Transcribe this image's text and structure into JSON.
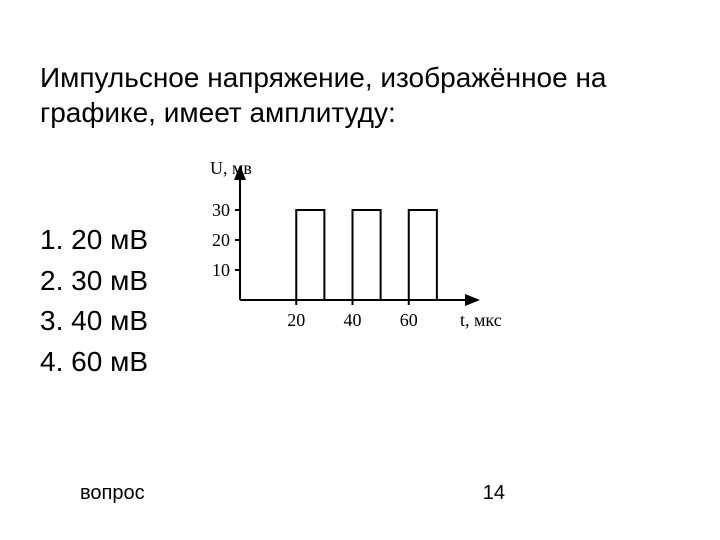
{
  "question": "Импульсное напряжение, изображённое на графике, имеет амплитуду:",
  "options": [
    {
      "n": "1.",
      "text": "20 мВ"
    },
    {
      "n": "2.",
      "text": "30 мВ"
    },
    {
      "n": "3.",
      "text": "40 мВ"
    },
    {
      "n": "4.",
      "text": "60 мВ"
    }
  ],
  "footer": {
    "left": "вопрос",
    "page": "14"
  },
  "chart": {
    "type": "pulse",
    "y_axis_label": "U, мв",
    "x_axis_label": "t, мкс",
    "y_ticks": [
      10,
      20,
      30
    ],
    "y_range": [
      0,
      40
    ],
    "x_ticks": [
      20,
      40,
      60
    ],
    "x_range": [
      0,
      80
    ],
    "pulse_level": 30,
    "pulses": [
      {
        "start": 20,
        "end": 30
      },
      {
        "start": 40,
        "end": 50
      },
      {
        "start": 60,
        "end": 70
      }
    ],
    "stroke": "#000000",
    "stroke_width": 2,
    "tick_font_size": 18,
    "label_font_size": 18,
    "background": "#ffffff"
  }
}
